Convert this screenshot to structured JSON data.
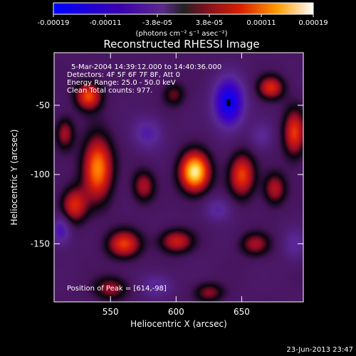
{
  "chart_data": {
    "type": "heatmap",
    "title": "Reconstructed RHESSI Image",
    "xlabel": "Heliocentric X (arcsec)",
    "ylabel": "Heliocentric Y (arcsec)",
    "xlim": [
      507,
      697
    ],
    "ylim": [
      -192,
      -12
    ],
    "x_ticks": [
      550,
      600,
      650
    ],
    "y_ticks": [
      -50,
      -100,
      -150
    ],
    "colorbar": {
      "min": -0.00019,
      "max": 0.00019,
      "tick_labels": [
        "-0.00019",
        "-0.00011",
        "-3.8e-05",
        "3.8e-05",
        "0.00011",
        "0.00019"
      ],
      "units_label": "(photons cm⁻² s⁻¹ asec⁻²)"
    },
    "info_lines": [
      "5-Mar-2004 14:39:12.000 to 14:40:36.000",
      "Detectors: 4F 5F 6F 7F 8F, Att 0",
      "Energy Range: 25.0 - 50.0 keV",
      "Clean     Total counts: 977."
    ],
    "peak_text": "Position of Peak = [614,-98]",
    "peak_position": [
      614,
      -98
    ],
    "blobs": [
      {
        "x": 614,
        "y": -98,
        "sx": 8,
        "sy": 10,
        "v": 1.0
      },
      {
        "x": 533,
        "y": -43,
        "sx": 7,
        "sy": 7,
        "v": 0.65
      },
      {
        "x": 540,
        "y": -95,
        "sx": 8,
        "sy": 16,
        "v": 0.78
      },
      {
        "x": 522,
        "y": -122,
        "sx": 7,
        "sy": 9,
        "v": 0.55
      },
      {
        "x": 560,
        "y": -150,
        "sx": 9,
        "sy": 7,
        "v": 0.6
      },
      {
        "x": 575,
        "y": -108,
        "sx": 6,
        "sy": 8,
        "v": 0.42
      },
      {
        "x": 600,
        "y": -148,
        "sx": 9,
        "sy": 6,
        "v": 0.5
      },
      {
        "x": 650,
        "y": -100,
        "sx": 7,
        "sy": 11,
        "v": 0.62
      },
      {
        "x": 672,
        "y": -37,
        "sx": 7,
        "sy": 6,
        "v": 0.55
      },
      {
        "x": 675,
        "y": -110,
        "sx": 6,
        "sy": 8,
        "v": 0.45
      },
      {
        "x": 690,
        "y": -70,
        "sx": 6,
        "sy": 12,
        "v": 0.6
      },
      {
        "x": 660,
        "y": -150,
        "sx": 8,
        "sy": 6,
        "v": 0.4
      },
      {
        "x": 625,
        "y": -185,
        "sx": 8,
        "sy": 5,
        "v": 0.35
      },
      {
        "x": 550,
        "y": -182,
        "sx": 9,
        "sy": 6,
        "v": 0.38
      },
      {
        "x": 515,
        "y": -70,
        "sx": 5,
        "sy": 8,
        "v": 0.4
      },
      {
        "x": 598,
        "y": -42,
        "sx": 6,
        "sy": 6,
        "v": 0.3
      },
      {
        "x": 640,
        "y": -48,
        "sx": 8,
        "sy": 12,
        "v": -0.9
      },
      {
        "x": 578,
        "y": -70,
        "sx": 8,
        "sy": 8,
        "v": -0.35
      },
      {
        "x": 512,
        "y": -140,
        "sx": 5,
        "sy": 7,
        "v": -0.45
      },
      {
        "x": 585,
        "y": -180,
        "sx": 8,
        "sy": 6,
        "v": -0.3
      },
      {
        "x": 690,
        "y": -150,
        "sx": 6,
        "sy": 8,
        "v": -0.25
      },
      {
        "x": 632,
        "y": -125,
        "sx": 7,
        "sy": 6,
        "v": -0.3
      },
      {
        "x": 665,
        "y": -72,
        "sx": 6,
        "sy": 7,
        "v": -0.25
      }
    ]
  },
  "footer": {
    "timestamp": "23-Jun-2013 23:47"
  }
}
